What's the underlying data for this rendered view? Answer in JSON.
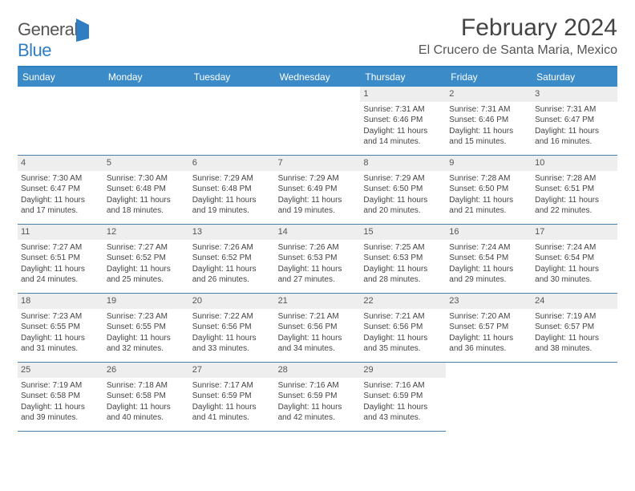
{
  "brand": {
    "part1": "General",
    "part2": "Blue"
  },
  "header": {
    "title": "February 2024",
    "location": "El Crucero de Santa Maria, Mexico"
  },
  "style": {
    "accent": "#3b8bc9",
    "rule": "#2f7ec2",
    "daybar_bg": "#eeeeee",
    "text": "#444444",
    "header_fontsize": 30,
    "location_fontsize": 16,
    "dayheader_fontsize": 12,
    "cell_fontsize": 10
  },
  "calendar": {
    "weekdays": [
      "Sunday",
      "Monday",
      "Tuesday",
      "Wednesday",
      "Thursday",
      "Friday",
      "Saturday"
    ],
    "leading_blanks": 4,
    "days": [
      {
        "n": "1",
        "sr": "7:31 AM",
        "ss": "6:46 PM",
        "d1": "11 hours",
        "d2": "14 minutes"
      },
      {
        "n": "2",
        "sr": "7:31 AM",
        "ss": "6:46 PM",
        "d1": "11 hours",
        "d2": "15 minutes"
      },
      {
        "n": "3",
        "sr": "7:31 AM",
        "ss": "6:47 PM",
        "d1": "11 hours",
        "d2": "16 minutes"
      },
      {
        "n": "4",
        "sr": "7:30 AM",
        "ss": "6:47 PM",
        "d1": "11 hours",
        "d2": "17 minutes"
      },
      {
        "n": "5",
        "sr": "7:30 AM",
        "ss": "6:48 PM",
        "d1": "11 hours",
        "d2": "18 minutes"
      },
      {
        "n": "6",
        "sr": "7:29 AM",
        "ss": "6:48 PM",
        "d1": "11 hours",
        "d2": "19 minutes"
      },
      {
        "n": "7",
        "sr": "7:29 AM",
        "ss": "6:49 PM",
        "d1": "11 hours",
        "d2": "19 minutes"
      },
      {
        "n": "8",
        "sr": "7:29 AM",
        "ss": "6:50 PM",
        "d1": "11 hours",
        "d2": "20 minutes"
      },
      {
        "n": "9",
        "sr": "7:28 AM",
        "ss": "6:50 PM",
        "d1": "11 hours",
        "d2": "21 minutes"
      },
      {
        "n": "10",
        "sr": "7:28 AM",
        "ss": "6:51 PM",
        "d1": "11 hours",
        "d2": "22 minutes"
      },
      {
        "n": "11",
        "sr": "7:27 AM",
        "ss": "6:51 PM",
        "d1": "11 hours",
        "d2": "24 minutes"
      },
      {
        "n": "12",
        "sr": "7:27 AM",
        "ss": "6:52 PM",
        "d1": "11 hours",
        "d2": "25 minutes"
      },
      {
        "n": "13",
        "sr": "7:26 AM",
        "ss": "6:52 PM",
        "d1": "11 hours",
        "d2": "26 minutes"
      },
      {
        "n": "14",
        "sr": "7:26 AM",
        "ss": "6:53 PM",
        "d1": "11 hours",
        "d2": "27 minutes"
      },
      {
        "n": "15",
        "sr": "7:25 AM",
        "ss": "6:53 PM",
        "d1": "11 hours",
        "d2": "28 minutes"
      },
      {
        "n": "16",
        "sr": "7:24 AM",
        "ss": "6:54 PM",
        "d1": "11 hours",
        "d2": "29 minutes"
      },
      {
        "n": "17",
        "sr": "7:24 AM",
        "ss": "6:54 PM",
        "d1": "11 hours",
        "d2": "30 minutes"
      },
      {
        "n": "18",
        "sr": "7:23 AM",
        "ss": "6:55 PM",
        "d1": "11 hours",
        "d2": "31 minutes"
      },
      {
        "n": "19",
        "sr": "7:23 AM",
        "ss": "6:55 PM",
        "d1": "11 hours",
        "d2": "32 minutes"
      },
      {
        "n": "20",
        "sr": "7:22 AM",
        "ss": "6:56 PM",
        "d1": "11 hours",
        "d2": "33 minutes"
      },
      {
        "n": "21",
        "sr": "7:21 AM",
        "ss": "6:56 PM",
        "d1": "11 hours",
        "d2": "34 minutes"
      },
      {
        "n": "22",
        "sr": "7:21 AM",
        "ss": "6:56 PM",
        "d1": "11 hours",
        "d2": "35 minutes"
      },
      {
        "n": "23",
        "sr": "7:20 AM",
        "ss": "6:57 PM",
        "d1": "11 hours",
        "d2": "36 minutes"
      },
      {
        "n": "24",
        "sr": "7:19 AM",
        "ss": "6:57 PM",
        "d1": "11 hours",
        "d2": "38 minutes"
      },
      {
        "n": "25",
        "sr": "7:19 AM",
        "ss": "6:58 PM",
        "d1": "11 hours",
        "d2": "39 minutes"
      },
      {
        "n": "26",
        "sr": "7:18 AM",
        "ss": "6:58 PM",
        "d1": "11 hours",
        "d2": "40 minutes"
      },
      {
        "n": "27",
        "sr": "7:17 AM",
        "ss": "6:59 PM",
        "d1": "11 hours",
        "d2": "41 minutes"
      },
      {
        "n": "28",
        "sr": "7:16 AM",
        "ss": "6:59 PM",
        "d1": "11 hours",
        "d2": "42 minutes"
      },
      {
        "n": "29",
        "sr": "7:16 AM",
        "ss": "6:59 PM",
        "d1": "11 hours",
        "d2": "43 minutes"
      }
    ]
  },
  "labels": {
    "sunrise": "Sunrise: ",
    "sunset": "Sunset: ",
    "daylight": "Daylight: ",
    "and": "and "
  }
}
